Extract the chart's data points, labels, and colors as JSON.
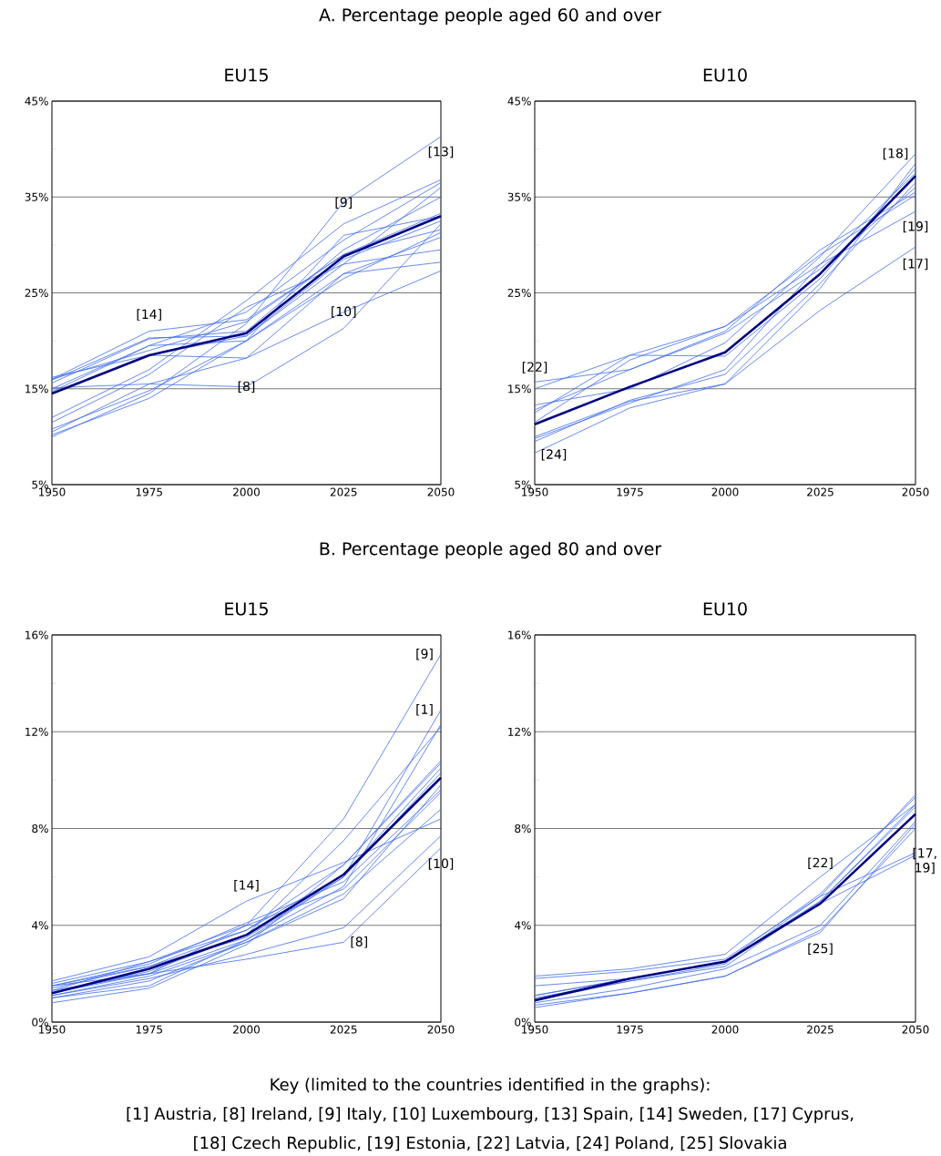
{
  "chart_data": [
    {
      "type": "line",
      "title": "EU15",
      "annotations": [
        "A. Percentage people aged 60 and over",
        {
          "text": "[9]",
          "x": 2025,
          "y": 32.2
        },
        {
          "text": "[13]",
          "x": 2050,
          "y": 41.3
        },
        {
          "text": "[14]",
          "x": 1975,
          "y": 21.0
        },
        {
          "text": "[10]",
          "x": 2025,
          "y": 23.0
        },
        {
          "text": "[8]",
          "x": 2000,
          "y": 15.2
        }
      ],
      "x": [
        1950,
        1975,
        2000,
        2025,
        2050
      ],
      "xlim": [
        1950,
        2050
      ],
      "xticks": [
        1950,
        1975,
        2000,
        2025,
        2050
      ],
      "ylim": [
        5,
        45
      ],
      "yticks": [
        {
          "value": 5,
          "label": "5%"
        },
        {
          "value": 10,
          "label": null
        },
        {
          "value": 15,
          "label": "15%"
        },
        {
          "value": 20,
          "label": null
        },
        {
          "value": 25,
          "label": "25%"
        },
        {
          "value": 30,
          "label": null
        },
        {
          "value": 35,
          "label": "35%"
        },
        {
          "value": 40,
          "label": null
        },
        {
          "value": 45,
          "label": "45%"
        }
      ],
      "grid": "y",
      "series": [
        {
          "color": "#3f6cf0",
          "values": [
            15.6,
            20.2,
            21.0,
            29.5,
            35.0
          ]
        },
        {
          "color": "#3f6cf0",
          "values": [
            16.0,
            19.0,
            22.0,
            29.0,
            33.3
          ]
        },
        {
          "color": "#3f6cf0",
          "values": [
            15.0,
            19.5,
            20.0,
            27.0,
            30.8
          ]
        },
        {
          "color": "#3f6cf0",
          "values": [
            10.8,
            14.8,
            20.0,
            31.0,
            33.0
          ]
        },
        {
          "color": "#3f6cf0",
          "values": [
            16.2,
            18.5,
            20.5,
            28.5,
            32.5
          ]
        },
        {
          "color": "#3f6cf0",
          "values": [
            14.7,
            19.5,
            23.0,
            30.5,
            36.5
          ]
        },
        {
          "color": "#3f6cf0",
          "values": [
            11.5,
            16.5,
            23.5,
            28.0,
            36.0
          ]
        },
        {
          "color": "#3f6cf0",
          "values": [
            15.1,
            15.5,
            15.2,
            21.3,
            32.2
          ]
        },
        {
          "color": "#3f6cf0",
          "values": [
            12.0,
            17.0,
            24.2,
            32.2,
            36.8
          ]
        },
        {
          "color": "#3f6cf0",
          "values": [
            14.5,
            18.5,
            18.2,
            23.0,
            27.3
          ]
        },
        {
          "color": "#3f6cf0",
          "values": [
            10.5,
            15.5,
            18.2,
            27.0,
            28.2
          ]
        },
        {
          "color": "#3f6cf0",
          "values": [
            10.2,
            14.0,
            20.0,
            26.5,
            31.3
          ]
        },
        {
          "color": "#3f6cf0",
          "values": [
            10.0,
            14.5,
            21.8,
            34.5,
            41.3
          ]
        },
        {
          "color": "#3f6cf0",
          "values": [
            16.0,
            21.0,
            22.2,
            29.0,
            31.6
          ]
        },
        {
          "color": "#3f6cf0",
          "values": [
            15.9,
            20.3,
            20.5,
            28.0,
            29.5
          ]
        },
        {
          "color": "#000080",
          "values": [
            14.5,
            18.5,
            20.8,
            28.8,
            33.0
          ]
        }
      ]
    },
    {
      "type": "line",
      "title": "EU10",
      "annotations": [
        {
          "text": "[18]",
          "x": 2050,
          "y": 39.5
        },
        {
          "text": "[19]",
          "x": 2050,
          "y": 33.5
        },
        {
          "text": "[17]",
          "x": 2050,
          "y": 29.8
        },
        {
          "text": "[22]",
          "x": 1950,
          "y": 15.7
        },
        {
          "text": "[24]",
          "x": 1950,
          "y": 8.3
        }
      ],
      "x": [
        1950,
        1975,
        2000,
        2025,
        2050
      ],
      "xlim": [
        1950,
        2050
      ],
      "xticks": [
        1950,
        1975,
        2000,
        2025,
        2050
      ],
      "ylim": [
        5,
        45
      ],
      "yticks": [
        {
          "value": 5,
          "label": "5%"
        },
        {
          "value": 10,
          "label": null
        },
        {
          "value": 15,
          "label": "15%"
        },
        {
          "value": 20,
          "label": null
        },
        {
          "value": 25,
          "label": "25%"
        },
        {
          "value": 30,
          "label": null
        },
        {
          "value": 35,
          "label": "35%"
        },
        {
          "value": 40,
          "label": null
        },
        {
          "value": 45,
          "label": "45%"
        }
      ],
      "grid": "y",
      "series": [
        {
          "color": "#3f6cf0",
          "values": [
            15.7,
            17.0,
            21.0,
            29.5,
            35.5
          ]
        },
        {
          "color": "#3f6cf0",
          "values": [
            15.0,
            18.5,
            21.5,
            28.0,
            33.5
          ]
        },
        {
          "color": "#3f6cf0",
          "values": [
            13.3,
            15.0,
            19.8,
            28.8,
            39.5
          ]
        },
        {
          "color": "#3f6cf0",
          "values": [
            12.5,
            18.5,
            18.4,
            26.5,
            38.0
          ]
        },
        {
          "color": "#3f6cf0",
          "values": [
            10.0,
            13.7,
            15.5,
            23.2,
            29.8
          ]
        },
        {
          "color": "#3f6cf0",
          "values": [
            8.3,
            13.0,
            15.5,
            25.5,
            38.5
          ]
        },
        {
          "color": "#3f6cf0",
          "values": [
            9.5,
            13.8,
            16.5,
            26.0,
            36.5
          ]
        },
        {
          "color": "#3f6cf0",
          "values": [
            11.5,
            18.0,
            21.5,
            29.0,
            35.2
          ]
        },
        {
          "color": "#3f6cf0",
          "values": [
            12.8,
            17.0,
            20.8,
            27.5,
            36.0
          ]
        },
        {
          "color": "#3f6cf0",
          "values": [
            9.8,
            13.5,
            17.0,
            28.0,
            37.5
          ]
        },
        {
          "color": "#000080",
          "values": [
            11.3,
            15.2,
            18.8,
            27.0,
            37.2
          ]
        }
      ]
    },
    {
      "type": "line",
      "title": "EU15",
      "annotations": [
        "B. Percentage people aged 80 and over",
        {
          "text": "[9]",
          "x": 2050,
          "y": 15.2
        },
        {
          "text": "[1]",
          "x": 2050,
          "y": 12.9
        },
        {
          "text": "[14]",
          "x": 2000,
          "y": 5.0
        },
        {
          "text": "[10]",
          "x": 2050,
          "y": 7.7
        },
        {
          "text": "[8]",
          "x": 2025,
          "y": 3.3
        }
      ],
      "x": [
        1950,
        1975,
        2000,
        2025,
        2050
      ],
      "xlim": [
        1950,
        2050
      ],
      "xticks": [
        1950,
        1975,
        2000,
        2025,
        2050
      ],
      "ylim": [
        0,
        16
      ],
      "yticks": [
        {
          "value": 0,
          "label": "0%"
        },
        {
          "value": 2,
          "label": null
        },
        {
          "value": 4,
          "label": "4%"
        },
        {
          "value": 6,
          "label": null
        },
        {
          "value": 8,
          "label": "8%"
        },
        {
          "value": 10,
          "label": null
        },
        {
          "value": 12,
          "label": "12%"
        },
        {
          "value": 14,
          "label": null
        },
        {
          "value": 16,
          "label": "16%"
        }
      ],
      "grid": "y",
      "series": [
        {
          "color": "#3f6cf0",
          "values": [
            1.5,
            2.3,
            3.5,
            6.0,
            12.9
          ]
        },
        {
          "color": "#3f6cf0",
          "values": [
            1.4,
            2.3,
            3.8,
            6.1,
            10.5
          ]
        },
        {
          "color": "#3f6cf0",
          "values": [
            1.3,
            2.5,
            4.0,
            5.5,
            9.5
          ]
        },
        {
          "color": "#3f6cf0",
          "values": [
            0.8,
            1.4,
            3.2,
            6.5,
            10.7
          ]
        },
        {
          "color": "#3f6cf0",
          "values": [
            1.6,
            2.5,
            3.8,
            6.5,
            10.8
          ]
        },
        {
          "color": "#3f6cf0",
          "values": [
            1.2,
            2.1,
            3.6,
            7.5,
            12.2
          ]
        },
        {
          "color": "#3f6cf0",
          "values": [
            1.3,
            2.0,
            3.4,
            6.0,
            10.3
          ]
        },
        {
          "color": "#3f6cf0",
          "values": [
            1.5,
            2.0,
            2.6,
            3.3,
            7.2
          ]
        },
        {
          "color": "#3f6cf0",
          "values": [
            1.2,
            2.0,
            4.0,
            8.4,
            15.2
          ]
        },
        {
          "color": "#3f6cf0",
          "values": [
            1.1,
            1.8,
            2.8,
            3.9,
            7.7
          ]
        },
        {
          "color": "#3f6cf0",
          "values": [
            1.1,
            1.9,
            3.3,
            5.3,
            8.8
          ]
        },
        {
          "color": "#3f6cf0",
          "values": [
            1.0,
            1.7,
            3.3,
            5.1,
            9.8
          ]
        },
        {
          "color": "#3f6cf0",
          "values": [
            1.0,
            1.5,
            3.4,
            5.6,
            12.3
          ]
        },
        {
          "color": "#3f6cf0",
          "values": [
            1.7,
            2.7,
            5.0,
            6.6,
            8.4
          ]
        },
        {
          "color": "#3f6cf0",
          "values": [
            1.5,
            2.4,
            4.1,
            5.8,
            9.6
          ]
        },
        {
          "color": "#000080",
          "values": [
            1.2,
            2.2,
            3.6,
            6.1,
            10.1
          ]
        }
      ]
    },
    {
      "type": "line",
      "title": "EU10",
      "annotations": [
        {
          "text": "[22]",
          "x": 2025,
          "y": 6.0
        },
        {
          "text": "[25]",
          "x": 2025,
          "y": 3.7
        },
        {
          "text": "[17, 19]",
          "x": 2050,
          "y": 7.0
        },
        "Key (limited to the countries identified in the graphs):",
        "[1] Austria, [8] Ireland, [9] Italy, [10] Luxembourg, [13] Spain, [14] Sweden, [17] Cyprus,",
        "[18] Czech Republic, [19] Estonia, [22] Latvia, [24] Poland, [25] Slovakia"
      ],
      "x": [
        1950,
        1975,
        2000,
        2025,
        2050
      ],
      "xlim": [
        1950,
        2050
      ],
      "xticks": [
        1950,
        1975,
        2000,
        2025,
        2050
      ],
      "ylim": [
        0,
        16
      ],
      "yticks": [
        {
          "value": 0,
          "label": "0%"
        },
        {
          "value": 2,
          "label": null
        },
        {
          "value": 4,
          "label": "4%"
        },
        {
          "value": 6,
          "label": null
        },
        {
          "value": 8,
          "label": "8%"
        },
        {
          "value": 10,
          "label": null
        },
        {
          "value": 12,
          "label": "12%"
        },
        {
          "value": 14,
          "label": null
        },
        {
          "value": 16,
          "label": "16%"
        }
      ],
      "grid": "y",
      "series": [
        {
          "color": "#3f6cf0",
          "values": [
            1.9,
            2.2,
            2.8,
            6.0,
            9.0
          ]
        },
        {
          "color": "#3f6cf0",
          "values": [
            1.8,
            2.1,
            2.6,
            5.2,
            7.0
          ]
        },
        {
          "color": "#3f6cf0",
          "values": [
            1.5,
            1.8,
            2.5,
            4.9,
            6.9
          ]
        },
        {
          "color": "#3f6cf0",
          "values": [
            0.9,
            1.7,
            2.4,
            5.2,
            9.4
          ]
        },
        {
          "color": "#3f6cf0",
          "values": [
            1.1,
            1.8,
            2.5,
            5.3,
            9.3
          ]
        },
        {
          "color": "#3f6cf0",
          "values": [
            1.0,
            1.7,
            2.3,
            5.0,
            8.9
          ]
        },
        {
          "color": "#3f6cf0",
          "values": [
            0.8,
            1.4,
            2.2,
            4.0,
            8.3
          ]
        },
        {
          "color": "#3f6cf0",
          "values": [
            0.7,
            1.2,
            1.9,
            3.8,
            8.0
          ]
        },
        {
          "color": "#3f6cf0",
          "values": [
            0.6,
            1.2,
            1.9,
            3.7,
            8.2
          ]
        },
        {
          "color": "#3f6cf0",
          "values": [
            1.1,
            1.8,
            2.5,
            5.0,
            9.0
          ]
        },
        {
          "color": "#000080",
          "values": [
            0.9,
            1.8,
            2.5,
            4.9,
            8.6
          ]
        }
      ]
    }
  ]
}
